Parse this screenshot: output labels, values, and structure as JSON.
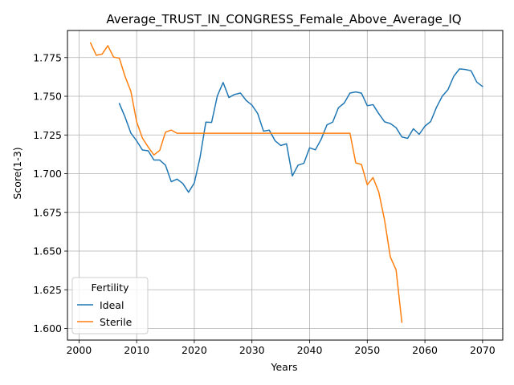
{
  "chart_data": {
    "type": "line",
    "title": "Average_TRUST_IN_CONGRESS_Female_Above_Average_IQ",
    "xlabel": "Years",
    "ylabel": "Score(1-3)",
    "xlim": [
      1998,
      2073.5
    ],
    "ylim": [
      1.5925,
      1.7925
    ],
    "xticks": [
      2000,
      2010,
      2020,
      2030,
      2040,
      2050,
      2060,
      2070
    ],
    "xtick_labels": [
      "2000",
      "2010",
      "2020",
      "2030",
      "2040",
      "2050",
      "2060",
      "2070"
    ],
    "yticks": [
      1.6,
      1.625,
      1.65,
      1.675,
      1.7,
      1.725,
      1.75,
      1.775
    ],
    "ytick_labels": [
      "1.600",
      "1.625",
      "1.650",
      "1.675",
      "1.700",
      "1.725",
      "1.750",
      "1.775"
    ],
    "grid": true,
    "legend": {
      "title": "Fertility",
      "position": "lower-left"
    },
    "series": [
      {
        "name": "Ideal",
        "color": "#1f77b4",
        "x": [
          2007,
          2008,
          2009,
          2010,
          2011,
          2012,
          2013,
          2014,
          2015,
          2016,
          2017,
          2018,
          2019,
          2020,
          2021,
          2022,
          2023,
          2024,
          2025,
          2026,
          2027,
          2028,
          2029,
          2030,
          2031,
          2032,
          2033,
          2034,
          2035,
          2036,
          2037,
          2038,
          2039,
          2040,
          2041,
          2042,
          2043,
          2044,
          2045,
          2046,
          2047,
          2048,
          2049,
          2050,
          2051,
          2052,
          2053,
          2054,
          2055,
          2056,
          2057,
          2058,
          2059,
          2060,
          2061,
          2062,
          2063,
          2064,
          2065,
          2066,
          2067,
          2068,
          2069,
          2070
        ],
        "y": [
          1.7453,
          1.7365,
          1.7262,
          1.7212,
          1.7153,
          1.7148,
          1.7088,
          1.7088,
          1.7055,
          1.6948,
          1.6965,
          1.6937,
          1.688,
          1.694,
          1.7105,
          1.7333,
          1.7331,
          1.7503,
          1.7589,
          1.7492,
          1.7512,
          1.7521,
          1.7473,
          1.7443,
          1.7388,
          1.7275,
          1.7281,
          1.7213,
          1.7182,
          1.7193,
          1.6985,
          1.7055,
          1.7067,
          1.7167,
          1.7154,
          1.7222,
          1.7315,
          1.7333,
          1.7426,
          1.7456,
          1.7521,
          1.7528,
          1.752,
          1.7439,
          1.7446,
          1.7387,
          1.7335,
          1.7324,
          1.7297,
          1.7237,
          1.7228,
          1.729,
          1.7254,
          1.7307,
          1.7337,
          1.7428,
          1.75,
          1.7543,
          1.7629,
          1.7677,
          1.7673,
          1.7665,
          1.7591,
          1.7563
        ]
      },
      {
        "name": "Sterile",
        "color": "#ff7f0e",
        "x": [
          2002,
          2003,
          2004,
          2005,
          2006,
          2007,
          2008,
          2009,
          2010,
          2011,
          2012,
          2013,
          2014,
          2015,
          2016,
          2017,
          2018,
          2019,
          2020,
          2021,
          2022,
          2023,
          2024,
          2025,
          2026,
          2027,
          2028,
          2029,
          2030,
          2031,
          2032,
          2033,
          2034,
          2035,
          2036,
          2037,
          2038,
          2039,
          2040,
          2041,
          2042,
          2043,
          2044,
          2045,
          2046,
          2047,
          2048,
          2049,
          2050,
          2051,
          2052,
          2053,
          2054,
          2055,
          2056
        ],
        "y": [
          1.7845,
          1.7765,
          1.7772,
          1.7827,
          1.7753,
          1.7746,
          1.7627,
          1.7532,
          1.7335,
          1.723,
          1.7172,
          1.7121,
          1.715,
          1.7268,
          1.7282,
          1.7261,
          1.7261,
          1.7261,
          1.7261,
          1.7261,
          1.7261,
          1.7261,
          1.7261,
          1.7261,
          1.7261,
          1.7261,
          1.7261,
          1.7261,
          1.7261,
          1.7261,
          1.7261,
          1.7261,
          1.7261,
          1.7261,
          1.7261,
          1.7261,
          1.7261,
          1.7261,
          1.7261,
          1.7261,
          1.7261,
          1.7261,
          1.7261,
          1.7261,
          1.7261,
          1.7261,
          1.707,
          1.7059,
          1.6928,
          1.6975,
          1.688,
          1.67,
          1.6462,
          1.6378,
          1.604
        ]
      }
    ]
  }
}
